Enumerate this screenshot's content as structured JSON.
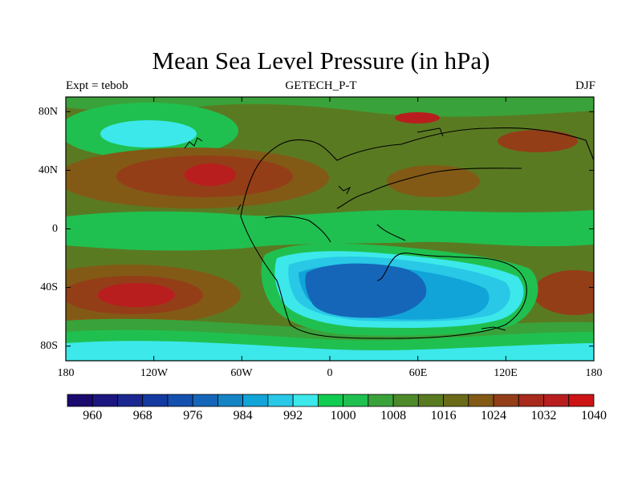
{
  "title": "Mean Sea Level Pressure (in hPa)",
  "subtitle_left": "Expt = tebob",
  "subtitle_center": "GETECH_P-T",
  "subtitle_right": "DJF",
  "lat_ticks": [
    "80N",
    "40N",
    "0",
    "40S",
    "80S"
  ],
  "lon_ticks": [
    "180",
    "120W",
    "60W",
    "0",
    "60E",
    "120E",
    "180"
  ],
  "colorbar": {
    "labels": [
      "960",
      "968",
      "976",
      "984",
      "992",
      "1000",
      "1008",
      "1016",
      "1024",
      "1032",
      "1040"
    ],
    "colors": [
      "#1a0a6e",
      "#1c1680",
      "#1a2790",
      "#133aa0",
      "#1450ae",
      "#1566b8",
      "#1484c4",
      "#10a4d8",
      "#28c8e6",
      "#3ce8ea",
      "#10cc50",
      "#20c050",
      "#3aa23a",
      "#4e8a2a",
      "#5a7a22",
      "#6a6a18",
      "#825a16",
      "#943e18",
      "#a82a1c",
      "#b81e1e",
      "#cc1414"
    ]
  },
  "chart_data": {
    "type": "heatmap",
    "variable": "Mean Sea Level Pressure",
    "units": "hPa",
    "experiment": "tebob",
    "dataset": "GETECH_P-T",
    "season": "DJF",
    "lon_range": [
      -180,
      180
    ],
    "lat_range": [
      -90,
      90
    ],
    "contour_levels": [
      960,
      964,
      968,
      972,
      976,
      980,
      984,
      988,
      992,
      996,
      1000,
      1004,
      1008,
      1012,
      1016,
      1020,
      1024,
      1028,
      1032,
      1036,
      1040
    ]
  }
}
